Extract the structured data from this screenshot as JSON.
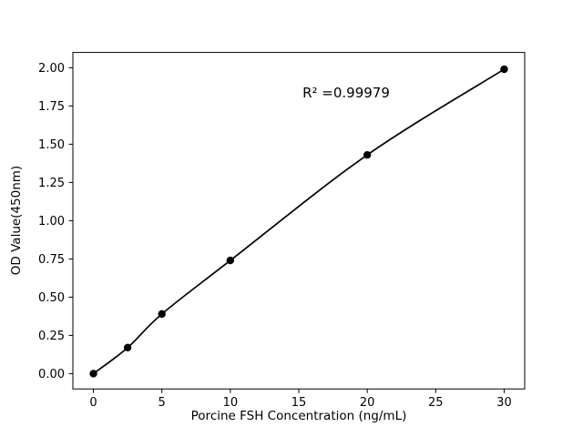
{
  "figure": {
    "background": "#ffffff"
  },
  "chart_data": {
    "type": "line",
    "x": [
      0,
      2.5,
      5,
      10,
      20,
      30
    ],
    "y": [
      0.0,
      0.17,
      0.39,
      0.74,
      1.43,
      1.99
    ],
    "title": "",
    "xlabel": "Porcine FSH Concentration (ng/mL)",
    "ylabel": "OD Value(450nm)",
    "annotation": "R² =0.99979",
    "xlim": [
      -1.5,
      31.5
    ],
    "ylim": [
      -0.1,
      2.1
    ],
    "xticks": [
      0,
      5,
      10,
      15,
      20,
      25,
      30
    ],
    "xtick_labels": [
      "0",
      "5",
      "10",
      "15",
      "20",
      "25",
      "30"
    ],
    "yticks": [
      0,
      0.25,
      0.5,
      0.75,
      1.0,
      1.25,
      1.5,
      1.75,
      2.0
    ],
    "ytick_labels": [
      "0.00",
      "0.25",
      "0.50",
      "0.75",
      "1.00",
      "1.25",
      "1.50",
      "1.75",
      "2.00"
    ],
    "line_color": "#000000",
    "marker_color": "#000000",
    "grid": false,
    "legend": null
  }
}
